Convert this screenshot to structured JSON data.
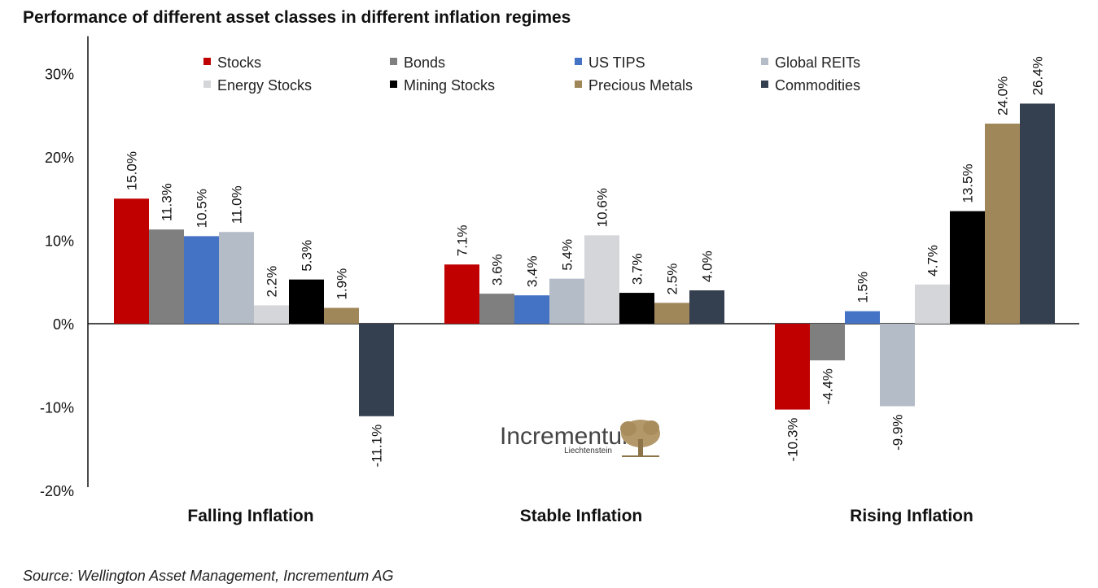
{
  "title": "Performance of different asset classes in different inflation regimes",
  "source": "Source: Wellington Asset Management, Incrementum AG",
  "logo": {
    "name": "Incrementum",
    "sub": "Liechtenstein"
  },
  "chart_data": {
    "type": "bar",
    "categories": [
      "Falling Inflation",
      "Stable Inflation",
      "Rising Inflation"
    ],
    "ylim": [
      -20,
      30
    ],
    "yticks": [
      -20,
      -10,
      0,
      10,
      20,
      30
    ],
    "ytick_labels": [
      "-20%",
      "-10%",
      "0%",
      "10%",
      "20%",
      "30%"
    ],
    "legend_position": "top",
    "series": [
      {
        "name": "Stocks",
        "color": "#c00000",
        "values": [
          15.0,
          7.1,
          -10.3
        ],
        "labels": [
          "15.0%",
          "7.1%",
          "-10.3%"
        ]
      },
      {
        "name": "Bonds",
        "color": "#7f7f7f",
        "values": [
          11.3,
          3.6,
          -4.4
        ],
        "labels": [
          "11.3%",
          "3.6%",
          "-4.4%"
        ]
      },
      {
        "name": "US TIPS",
        "color": "#4472c4",
        "values": [
          10.5,
          3.4,
          1.5
        ],
        "labels": [
          "10.5%",
          "3.4%",
          "1.5%"
        ]
      },
      {
        "name": "Global REITs",
        "color": "#b4bcc8",
        "values": [
          11.0,
          5.4,
          -9.9
        ],
        "labels": [
          "11.0%",
          "5.4%",
          "-9.9%"
        ]
      },
      {
        "name": "Energy Stocks",
        "color": "#d4d6d9",
        "values": [
          2.2,
          10.6,
          4.7
        ],
        "labels": [
          "2.2%",
          "10.6%",
          "4.7%"
        ]
      },
      {
        "name": "Mining Stocks",
        "color": "#000000",
        "values": [
          5.3,
          3.7,
          13.5
        ],
        "labels": [
          "5.3%",
          "3.7%",
          "13.5%"
        ]
      },
      {
        "name": "Precious Metals",
        "color": "#a0875a",
        "values": [
          1.9,
          2.5,
          24.0
        ],
        "labels": [
          "1.9%",
          "2.5%",
          "24.0%"
        ]
      },
      {
        "name": "Commodities",
        "color": "#343f4f",
        "values": [
          -11.1,
          4.0,
          26.4
        ],
        "labels": [
          "-11.1%",
          "4.0%",
          "26.4%"
        ]
      }
    ]
  }
}
